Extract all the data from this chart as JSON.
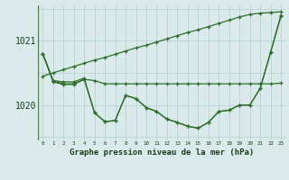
{
  "background_color": "#daeaea",
  "grid_color": "#b8d4d4",
  "line_color": "#2d6e2d",
  "text_color": "#1a3d1a",
  "title": "Graphe pression niveau de la mer (hPa)",
  "xlabel_ticks": [
    0,
    1,
    2,
    3,
    4,
    5,
    6,
    7,
    8,
    9,
    10,
    11,
    12,
    13,
    14,
    15,
    16,
    17,
    18,
    19,
    20,
    21,
    22,
    23
  ],
  "ylim": [
    1019.45,
    1021.55
  ],
  "yticks": [
    1020,
    1021
  ],
  "series": [
    [
      1020.8,
      1020.38,
      1020.36,
      1020.36,
      1020.42,
      1019.88,
      1019.74,
      1019.76,
      1020.15,
      1020.1,
      1019.96,
      1019.9,
      1019.78,
      1019.73,
      1019.67,
      1019.64,
      1019.73,
      1019.9,
      1019.92,
      1020.0,
      1020.0,
      1020.26,
      1020.82,
      1021.38
    ],
    [
      1020.45,
      1020.5,
      1020.55,
      1020.6,
      1020.65,
      1020.7,
      1020.74,
      1020.79,
      1020.84,
      1020.89,
      1020.93,
      1020.98,
      1021.03,
      1021.08,
      1021.13,
      1021.17,
      1021.22,
      1021.27,
      1021.32,
      1021.37,
      1021.41,
      1021.43,
      1021.44,
      1021.45
    ],
    [
      1020.8,
      1020.38,
      1020.33,
      1020.33,
      1020.4,
      1020.38,
      1020.33,
      1020.33,
      1020.33,
      1020.33,
      1020.33,
      1020.33,
      1020.33,
      1020.33,
      1020.33,
      1020.33,
      1020.33,
      1020.33,
      1020.33,
      1020.33,
      1020.33,
      1020.33,
      1020.33,
      1020.34
    ],
    [
      1020.8,
      1020.36,
      1020.32,
      1020.32,
      1020.4,
      1019.88,
      1019.74,
      1019.76,
      1020.15,
      1020.1,
      1019.96,
      1019.9,
      1019.78,
      1019.73,
      1019.67,
      1019.64,
      1019.73,
      1019.9,
      1019.92,
      1020.0,
      1020.0,
      1020.26,
      1020.82,
      1021.4
    ]
  ]
}
